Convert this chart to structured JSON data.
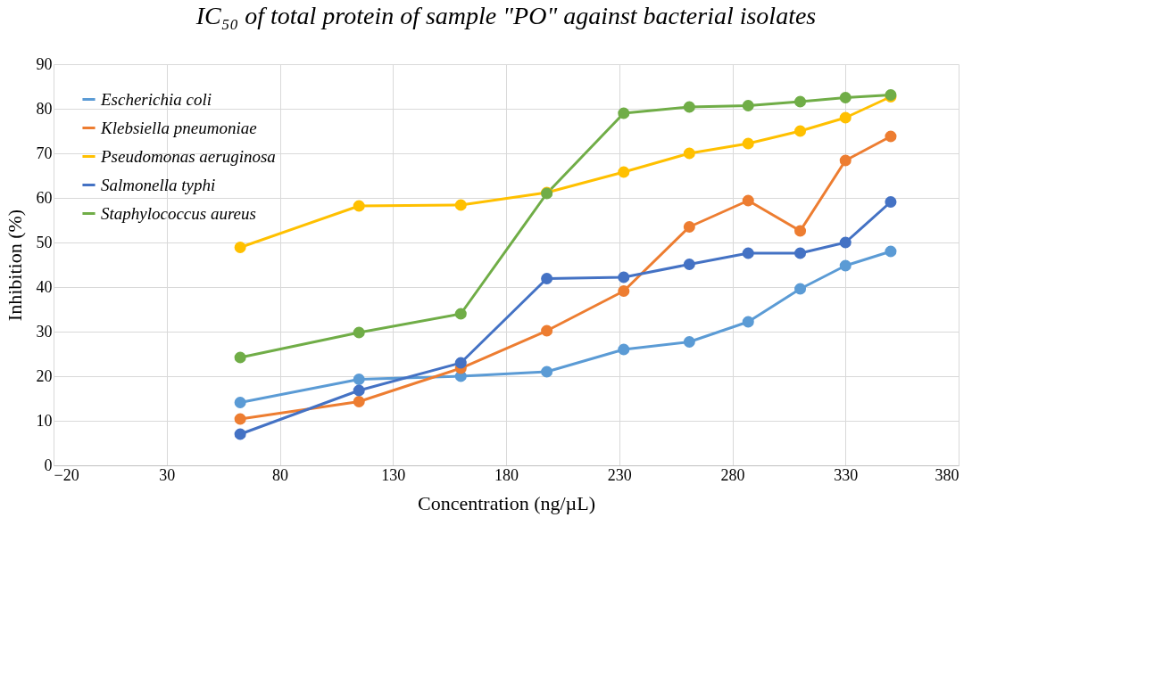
{
  "chart_data": {
    "type": "line",
    "title": "IC₅₀ of total protein of sample \"PO\" against bacterial isolates",
    "xlabel": "Concentration (ng/µL)",
    "ylabel": "Inhibition (%)",
    "x": [
      62.5,
      115,
      160,
      198,
      232,
      261,
      287,
      310,
      330,
      350
    ],
    "series": [
      {
        "name": "Escherichia coli",
        "color": "#5b9bd5",
        "values": [
          14.1,
          19.3,
          20,
          21,
          26,
          27.7,
          32.2,
          39.6,
          44.8,
          48
        ]
      },
      {
        "name": "Klebsiella pneumoniae",
        "color": "#ed7d31",
        "values": [
          10.4,
          14.3,
          21.8,
          30.2,
          39.1,
          53.5,
          59.4,
          52.6,
          68.4,
          73.8
        ]
      },
      {
        "name": "Pseudomonas aeruginosa",
        "color": "#ffc000",
        "values": [
          48.9,
          58.2,
          58.4,
          61.2,
          65.8,
          70,
          72.2,
          75,
          78,
          82.7
        ]
      },
      {
        "name": "Salmonella typhi",
        "color": "#4472c4",
        "values": [
          7,
          16.8,
          23,
          41.9,
          42.2,
          45.1,
          47.6,
          47.6,
          50,
          59.1
        ]
      },
      {
        "name": "Staphylococcus aureus",
        "color": "#70ad47",
        "values": [
          24.2,
          29.8,
          34,
          61,
          79,
          80.4,
          80.7,
          81.6,
          82.5,
          83.1
        ]
      }
    ],
    "xlim": [
      -20,
      380
    ],
    "xticks": [
      -20,
      30,
      80,
      130,
      180,
      230,
      280,
      330,
      380
    ],
    "ylim": [
      0,
      90
    ],
    "yticks": [
      0,
      10,
      20,
      30,
      40,
      50,
      60,
      70,
      80,
      90
    ],
    "grid": true,
    "legend": "top left",
    "marker": "circle",
    "line_style": "solid"
  }
}
